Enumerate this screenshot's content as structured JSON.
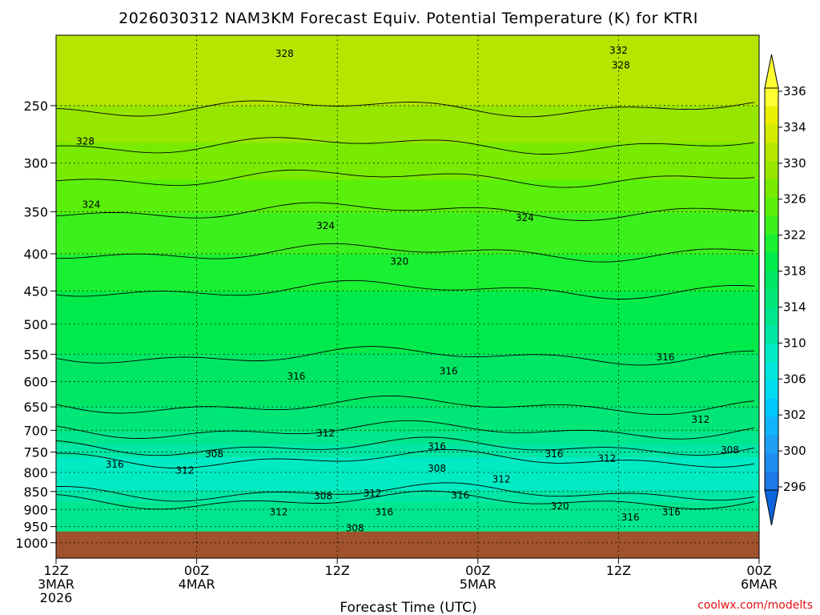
{
  "chart_data": {
    "type": "heatmap",
    "title": "2026030312 NAM3KM Forecast Equiv. Potential Temperature (K) for KTRI",
    "xlabel": "Forecast Time (UTC)",
    "ylabel": "",
    "credit": "coolwx.com/modelts",
    "x_ticks": [
      {
        "hour": 0,
        "lines": [
          "12Z",
          "3MAR",
          "2026"
        ]
      },
      {
        "hour": 12,
        "lines": [
          "00Z",
          "4MAR"
        ]
      },
      {
        "hour": 24,
        "lines": [
          "12Z"
        ]
      },
      {
        "hour": 36,
        "lines": [
          "00Z",
          "5MAR"
        ]
      },
      {
        "hour": 48,
        "lines": [
          "12Z"
        ]
      },
      {
        "hour": 60,
        "lines": [
          "00Z",
          "6MAR"
        ]
      }
    ],
    "xlim": [
      0,
      60
    ],
    "y_ticks": [
      250,
      300,
      350,
      400,
      450,
      500,
      550,
      600,
      650,
      700,
      750,
      800,
      850,
      900,
      950,
      1000
    ],
    "ylim": [
      200,
      1050
    ],
    "y_scale": "log-pressure",
    "surface_pressure": 965,
    "grid": true,
    "colorbar": {
      "ticks": [
        336,
        334,
        330,
        326,
        322,
        318,
        314,
        310,
        306,
        302,
        300,
        296
      ],
      "levels": [
        294,
        296,
        298,
        300,
        302,
        304,
        306,
        308,
        310,
        312,
        314,
        316,
        318,
        320,
        322,
        324,
        326,
        328,
        330,
        332,
        334,
        336,
        338
      ],
      "colors": [
        "#1e78e6",
        "#1e8cf0",
        "#1ea0f5",
        "#14b4fa",
        "#00c8ff",
        "#00dcf0",
        "#00e6dc",
        "#00ebc3",
        "#00e6a5",
        "#00e68c",
        "#00e678",
        "#00e664",
        "#00eb4b",
        "#19f032",
        "#3cf01e",
        "#5af00a",
        "#78eb00",
        "#96e600",
        "#b4e600",
        "#d2eb00",
        "#ebf000",
        "#ffff32"
      ]
    },
    "profile": [
      {
        "p": 220,
        "theta": 331
      },
      {
        "p": 250,
        "theta": 330
      },
      {
        "p": 300,
        "theta": 327
      },
      {
        "p": 350,
        "theta": 324
      },
      {
        "p": 400,
        "theta": 322
      },
      {
        "p": 450,
        "theta": 320
      },
      {
        "p": 500,
        "theta": 319
      },
      {
        "p": 550,
        "theta": 318
      },
      {
        "p": 600,
        "theta": 317
      },
      {
        "p": 650,
        "theta": 316
      },
      {
        "p": 700,
        "theta": 314
      },
      {
        "p": 750,
        "theta": 311
      },
      {
        "p": 800,
        "theta": 308
      },
      {
        "p": 850,
        "theta": 310
      },
      {
        "p": 900,
        "theta": 314
      },
      {
        "p": 950,
        "theta": 313
      }
    ],
    "contour_labels": [
      {
        "text": "328",
        "hour": 19.5,
        "p": 212
      },
      {
        "text": "332",
        "hour": 48.0,
        "p": 210
      },
      {
        "text": "328",
        "hour": 48.2,
        "p": 220
      },
      {
        "text": "328",
        "hour": 2.5,
        "p": 280
      },
      {
        "text": "324",
        "hour": 3.0,
        "p": 342
      },
      {
        "text": "324",
        "hour": 23.0,
        "p": 366
      },
      {
        "text": "324",
        "hour": 40.0,
        "p": 357
      },
      {
        "text": "320",
        "hour": 29.3,
        "p": 410
      },
      {
        "text": "316",
        "hour": 20.5,
        "p": 590
      },
      {
        "text": "316",
        "hour": 33.5,
        "p": 580
      },
      {
        "text": "316",
        "hour": 52.0,
        "p": 555
      },
      {
        "text": "312",
        "hour": 55.0,
        "p": 677
      },
      {
        "text": "312",
        "hour": 23.0,
        "p": 707
      },
      {
        "text": "316",
        "hour": 32.5,
        "p": 737
      },
      {
        "text": "308",
        "hour": 13.5,
        "p": 755
      },
      {
        "text": "316",
        "hour": 5.0,
        "p": 780
      },
      {
        "text": "312",
        "hour": 11.0,
        "p": 795
      },
      {
        "text": "308",
        "hour": 32.5,
        "p": 790
      },
      {
        "text": "316",
        "hour": 42.5,
        "p": 755
      },
      {
        "text": "312",
        "hour": 47.0,
        "p": 765
      },
      {
        "text": "312",
        "hour": 38.0,
        "p": 818
      },
      {
        "text": "308",
        "hour": 57.5,
        "p": 745
      },
      {
        "text": "308",
        "hour": 22.8,
        "p": 862
      },
      {
        "text": "312",
        "hour": 27.0,
        "p": 855
      },
      {
        "text": "316",
        "hour": 34.5,
        "p": 860
      },
      {
        "text": "312",
        "hour": 19.0,
        "p": 907
      },
      {
        "text": "316",
        "hour": 28.0,
        "p": 907
      },
      {
        "text": "320",
        "hour": 43.0,
        "p": 890
      },
      {
        "text": "316",
        "hour": 49.0,
        "p": 922
      },
      {
        "text": "316",
        "hour": 52.5,
        "p": 907
      },
      {
        "text": "308",
        "hour": 25.5,
        "p": 955
      }
    ]
  }
}
